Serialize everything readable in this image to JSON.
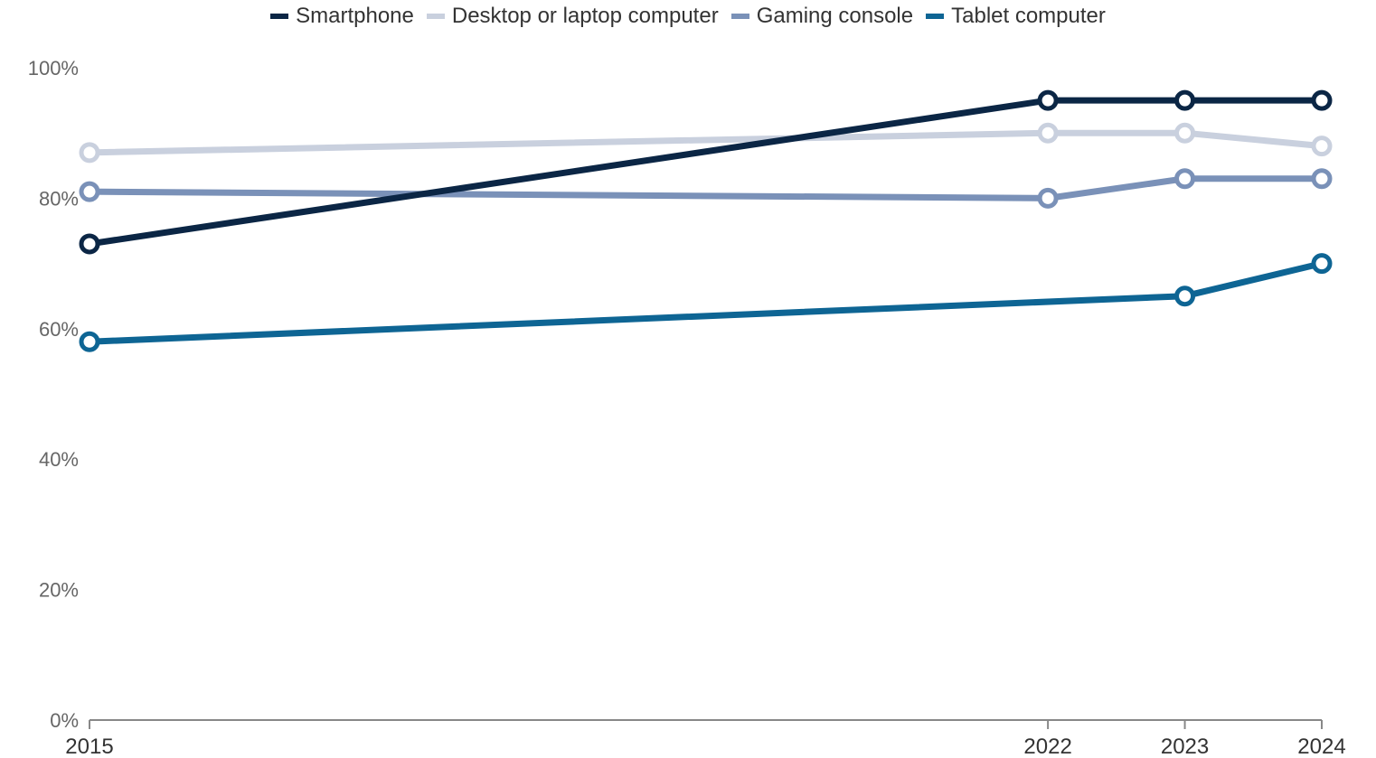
{
  "chart_data": {
    "type": "line",
    "x": [
      2015,
      2022,
      2023,
      2024
    ],
    "x_domain": [
      2015,
      2024
    ],
    "ylim": [
      0,
      100
    ],
    "yticks": [
      0,
      20,
      40,
      60,
      80,
      100
    ],
    "ytick_labels": [
      "0%",
      "20%",
      "40%",
      "60%",
      "80%",
      "100%"
    ],
    "xtick_labels": [
      "2015",
      "2022",
      "2023",
      "2024"
    ],
    "legend_position": "top-center",
    "grid": false,
    "series": [
      {
        "name": "Smartphone",
        "color": "#0b2645",
        "values": [
          73,
          95,
          95,
          95
        ]
      },
      {
        "name": "Desktop or laptop computer",
        "color": "#c9d0de",
        "values": [
          87,
          90,
          90,
          88
        ]
      },
      {
        "name": "Gaming console",
        "color": "#7a91b8",
        "values": [
          81,
          80,
          83,
          83
        ]
      },
      {
        "name": "Tablet computer",
        "color": "#0e6594",
        "values": [
          58,
          null,
          65,
          70
        ]
      }
    ]
  }
}
